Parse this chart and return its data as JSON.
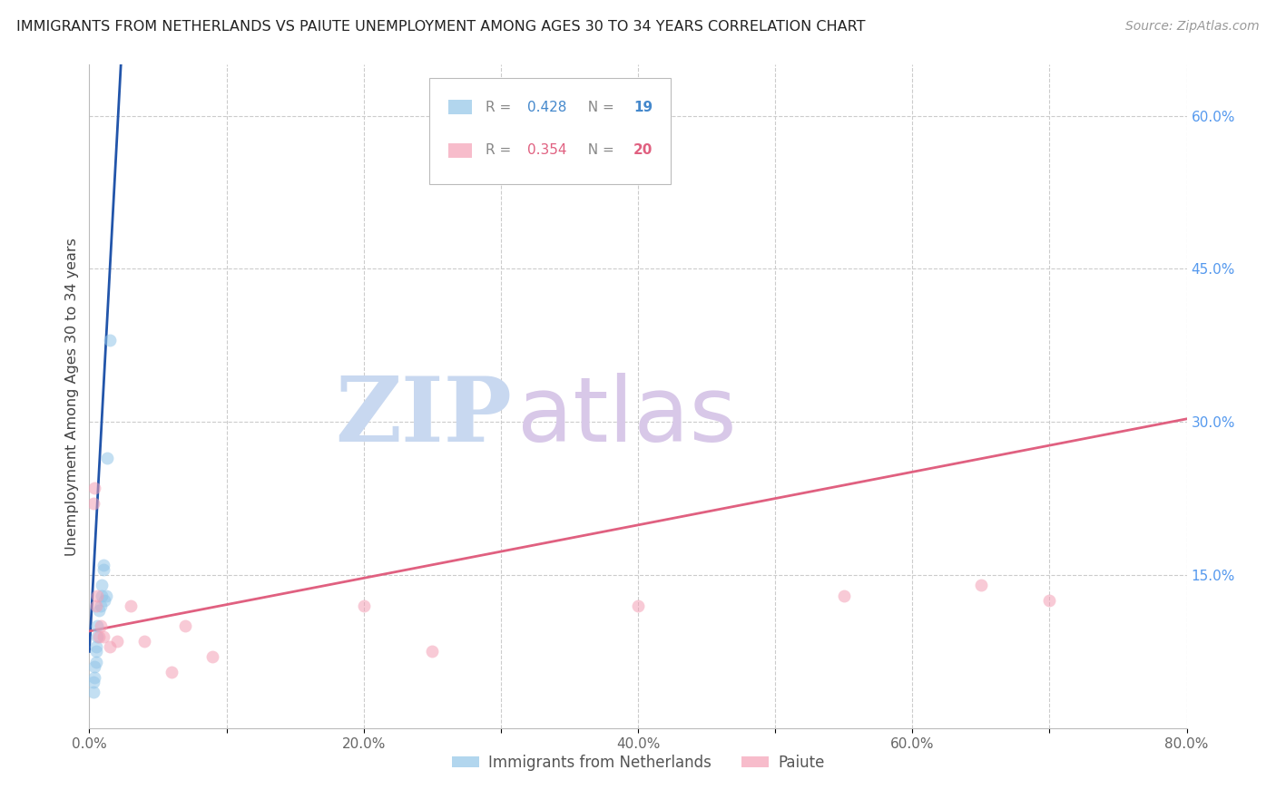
{
  "title": "IMMIGRANTS FROM NETHERLANDS VS PAIUTE UNEMPLOYMENT AMONG AGES 30 TO 34 YEARS CORRELATION CHART",
  "source": "Source: ZipAtlas.com",
  "ylabel": "Unemployment Among Ages 30 to 34 years",
  "xmin": 0.0,
  "xmax": 0.8,
  "ymin": 0.0,
  "ymax": 0.65,
  "xticks": [
    0.0,
    0.1,
    0.2,
    0.3,
    0.4,
    0.5,
    0.6,
    0.7,
    0.8
  ],
  "yticks_right": [
    0.0,
    0.15,
    0.3,
    0.45,
    0.6
  ],
  "ytick_labels_right": [
    "",
    "15.0%",
    "30.0%",
    "45.0%",
    "60.0%"
  ],
  "xtick_labels": [
    "0.0%",
    "",
    "20.0%",
    "",
    "40.0%",
    "",
    "60.0%",
    "",
    "80.0%"
  ],
  "netherlands_x": [
    0.003,
    0.003,
    0.004,
    0.004,
    0.005,
    0.005,
    0.005,
    0.006,
    0.006,
    0.007,
    0.008,
    0.009,
    0.009,
    0.01,
    0.01,
    0.011,
    0.012,
    0.013,
    0.015
  ],
  "netherlands_y": [
    0.035,
    0.045,
    0.05,
    0.06,
    0.065,
    0.075,
    0.08,
    0.09,
    0.1,
    0.115,
    0.12,
    0.13,
    0.14,
    0.155,
    0.16,
    0.125,
    0.13,
    0.265,
    0.38
  ],
  "paiute_x": [
    0.003,
    0.004,
    0.005,
    0.006,
    0.007,
    0.008,
    0.01,
    0.015,
    0.02,
    0.03,
    0.04,
    0.06,
    0.07,
    0.09,
    0.2,
    0.25,
    0.4,
    0.55,
    0.65,
    0.7
  ],
  "paiute_y": [
    0.22,
    0.235,
    0.12,
    0.13,
    0.09,
    0.1,
    0.09,
    0.08,
    0.085,
    0.12,
    0.085,
    0.055,
    0.1,
    0.07,
    0.12,
    0.075,
    0.12,
    0.13,
    0.14,
    0.125
  ],
  "netherlands_color": "#92C5E8",
  "paiute_color": "#F4A0B5",
  "netherlands_trend_color": "#2255AA",
  "paiute_trend_color": "#E06080",
  "netherlands_trend_intercept": 0.075,
  "netherlands_trend_slope": 25.0,
  "paiute_trend_intercept": 0.095,
  "paiute_trend_slope": 0.26,
  "netherlands_R": 0.428,
  "netherlands_N": 19,
  "paiute_R": 0.354,
  "paiute_N": 20,
  "watermark_zip": "ZIP",
  "watermark_atlas": "atlas",
  "watermark_color_zip": "#C8D8F0",
  "watermark_color_atlas": "#D8C8E8",
  "legend_label_netherlands": "Immigrants from Netherlands",
  "legend_label_paiute": "Paiute",
  "marker_size": 100,
  "marker_alpha": 0.55
}
